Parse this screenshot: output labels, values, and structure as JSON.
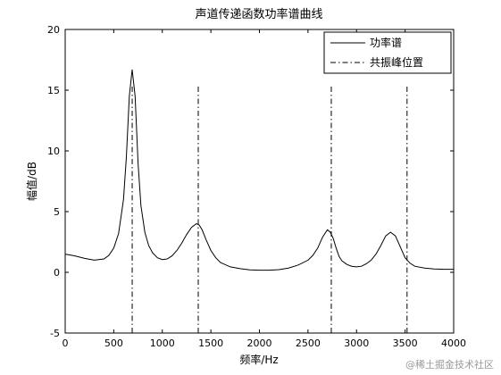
{
  "chart_data": {
    "type": "line",
    "title": "声道传递函数功率谱曲线",
    "xlabel": "频率/Hz",
    "ylabel": "幅值/dB",
    "xlim": [
      0,
      4000
    ],
    "ylim": [
      -5,
      20
    ],
    "xticks": [
      0,
      500,
      1000,
      1500,
      2000,
      2500,
      3000,
      3500,
      4000
    ],
    "yticks": [
      -5,
      0,
      5,
      10,
      15,
      20
    ],
    "grid": false,
    "legend_position": "top-right",
    "series": [
      {
        "name": "功率谱",
        "style": "solid",
        "x": [
          0,
          100,
          200,
          300,
          400,
          450,
          500,
          550,
          600,
          630,
          660,
          690,
          720,
          750,
          780,
          820,
          860,
          900,
          950,
          1000,
          1050,
          1100,
          1150,
          1200,
          1250,
          1300,
          1350,
          1380,
          1410,
          1450,
          1500,
          1550,
          1600,
          1700,
          1800,
          1900,
          2000,
          2100,
          2200,
          2300,
          2400,
          2500,
          2550,
          2600,
          2650,
          2700,
          2730,
          2760,
          2790,
          2820,
          2850,
          2900,
          2950,
          3000,
          3050,
          3100,
          3150,
          3200,
          3250,
          3300,
          3350,
          3400,
          3450,
          3500,
          3550,
          3600,
          3700,
          3800,
          3900,
          4000
        ],
        "y": [
          1.5,
          1.35,
          1.15,
          1.0,
          1.1,
          1.4,
          2.0,
          3.2,
          6.0,
          9.5,
          14.5,
          16.7,
          14.5,
          9.0,
          5.5,
          3.3,
          2.2,
          1.6,
          1.2,
          1.05,
          1.1,
          1.35,
          1.8,
          2.4,
          3.1,
          3.7,
          4.0,
          3.9,
          3.5,
          2.7,
          1.8,
          1.2,
          0.8,
          0.45,
          0.3,
          0.2,
          0.18,
          0.18,
          0.22,
          0.35,
          0.6,
          1.0,
          1.4,
          2.0,
          2.9,
          3.5,
          3.3,
          2.8,
          2.0,
          1.3,
          0.95,
          0.65,
          0.5,
          0.45,
          0.5,
          0.7,
          1.0,
          1.5,
          2.2,
          3.0,
          3.3,
          3.0,
          2.1,
          1.2,
          0.75,
          0.5,
          0.35,
          0.28,
          0.25,
          0.25
        ]
      },
      {
        "name": "共振峰位置",
        "style": "dashdot",
        "vlines": [
          690,
          1370,
          2740,
          3520
        ]
      }
    ]
  },
  "watermark": "@稀土掘金技术社区"
}
